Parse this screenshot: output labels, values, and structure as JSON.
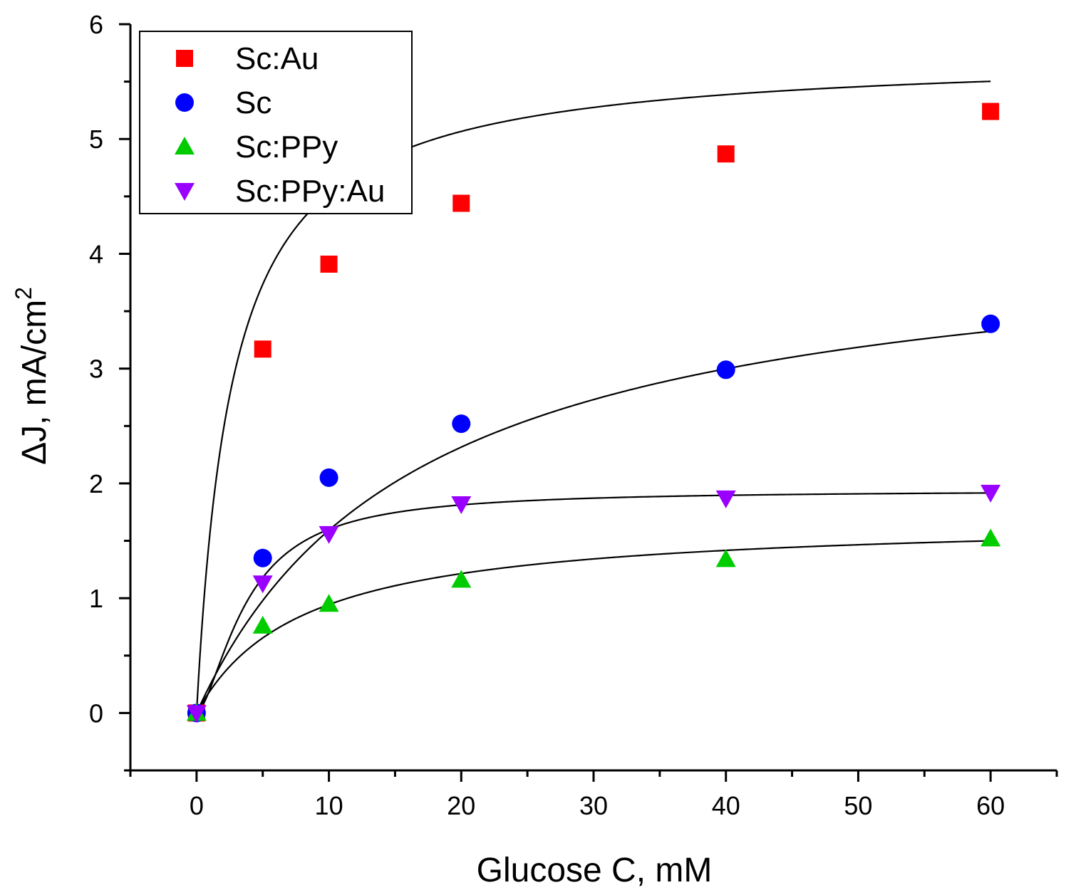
{
  "chart_data": {
    "type": "scatter",
    "title": "",
    "xlabel": "Glucose C, mM",
    "ylabel_main": "ΔJ, mA/cm",
    "ylabel_superscript": "2",
    "xlim": [
      -5,
      65
    ],
    "ylim": [
      -0.5,
      6
    ],
    "x_major_ticks": [
      0,
      10,
      20,
      30,
      40,
      50,
      60
    ],
    "x_minor_ticks": [
      -5,
      5,
      15,
      25,
      35,
      45,
      55,
      65
    ],
    "y_major_ticks": [
      0,
      1,
      2,
      3,
      4,
      5,
      6
    ],
    "y_minor_ticks": [
      -0.5,
      0.5,
      1.5,
      2.5,
      3.5,
      4.5,
      5.5
    ],
    "x_tick_labels": [
      "0",
      "10",
      "20",
      "30",
      "40",
      "50",
      "60"
    ],
    "y_tick_labels": [
      "0",
      "1",
      "2",
      "3",
      "4",
      "5",
      "6"
    ],
    "legend_position": "top-left",
    "grid": false,
    "series": [
      {
        "name": "Sc:Au",
        "marker": "square",
        "color": "#ff0000",
        "x": [
          0,
          5,
          10,
          20,
          40,
          60
        ],
        "y": [
          0.0,
          3.17,
          3.91,
          4.44,
          4.87,
          5.24
        ],
        "fit": {
          "model": "michaelis-menten",
          "jmax": 5.75,
          "km": 2.7
        }
      },
      {
        "name": "Sc",
        "marker": "circle",
        "color": "#0000ff",
        "x": [
          0,
          5,
          10,
          20,
          40,
          60
        ],
        "y": [
          0.0,
          1.35,
          2.05,
          2.52,
          2.99,
          3.39
        ],
        "fit": {
          "model": "michaelis-menten",
          "jmax": 4.25,
          "km": 16.7
        }
      },
      {
        "name": "Sc:PPy",
        "marker": "triangle-up",
        "color": "#00cc00",
        "x": [
          0,
          5,
          10,
          20,
          40,
          60
        ],
        "y": [
          0.0,
          0.76,
          0.95,
          1.16,
          1.34,
          1.52
        ],
        "fit": {
          "model": "michaelis-menten",
          "jmax": 1.7,
          "km": 8.0
        }
      },
      {
        "name": "Sc:PPy:Au",
        "marker": "triangle-down",
        "color": "#9900ff",
        "x": [
          0,
          5,
          10,
          20,
          40,
          60
        ],
        "y": [
          0.0,
          1.13,
          1.56,
          1.82,
          1.87,
          1.92
        ],
        "fit": {
          "model": "hill",
          "jmax": 1.94,
          "km": 3.8,
          "n": 1.6
        }
      }
    ]
  }
}
